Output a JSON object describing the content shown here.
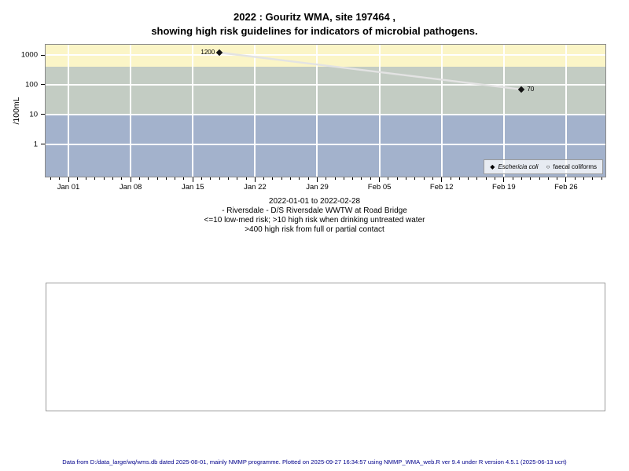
{
  "chart_data": {
    "type": "scatter",
    "title_lines": [
      "2022 : Gouritz WMA, site 197464 ,",
      "showing high risk guidelines for indicators of microbial pathogens."
    ],
    "ylabel": "/100mL",
    "xlabel": "",
    "y_scale": "log10",
    "ylim": [
      0.083,
      2200
    ],
    "y_ticks": [
      {
        "value": 1000,
        "label": "1000"
      },
      {
        "value": 100,
        "label": "100"
      },
      {
        "value": 10,
        "label": "10"
      },
      {
        "value": 1,
        "label": "1"
      }
    ],
    "x_epoch": "2022-01-01",
    "xlim_days": [
      -2.57,
      60.43
    ],
    "x_ticks": [
      {
        "date": "2022-01-01",
        "label": "Jan 01"
      },
      {
        "date": "2022-01-08",
        "label": "Jan 08"
      },
      {
        "date": "2022-01-15",
        "label": "Jan 15"
      },
      {
        "date": "2022-01-22",
        "label": "Jan 22"
      },
      {
        "date": "2022-01-29",
        "label": "Jan 29"
      },
      {
        "date": "2022-02-05",
        "label": "Feb 05"
      },
      {
        "date": "2022-02-12",
        "label": "Feb 12"
      },
      {
        "date": "2022-02-19",
        "label": "Feb 19"
      },
      {
        "date": "2022-02-26",
        "label": "Feb 26"
      }
    ],
    "x_minor_ticks": {
      "start_day": -2,
      "end_day": 60,
      "step": 1
    },
    "series": [
      {
        "name": "Eschericia coli",
        "symbol": "filled-diamond",
        "points": [
          {
            "date": "2022-01-18",
            "value": 1200,
            "label": "1200",
            "label_side": "left"
          },
          {
            "date": "2022-02-21",
            "value": 70,
            "label": "70",
            "label_side": "right"
          }
        ]
      },
      {
        "name": "faecal coliforms",
        "symbol": "open-circle",
        "points": []
      }
    ],
    "risk_bands": [
      {
        "name": "high risk from full or partial contact (>400)",
        "from": 400,
        "to": 2200,
        "color": "#FBF5C7"
      },
      {
        "name": "high risk when drinking untreated water (10-400)",
        "from": 10,
        "to": 400,
        "color": "#C3CCC3"
      },
      {
        "name": "low-med risk (<=10)",
        "from": 0.083,
        "to": 10,
        "color": "#A3B2CC"
      }
    ],
    "gridlines_y": [
      1000,
      100,
      10,
      1
    ],
    "grid_color": "#FFFFFF",
    "line_color": "#E3E3E3",
    "point_color": "#141414",
    "legend": {
      "position": "bottom-right",
      "entries": [
        {
          "label": "Eschericia coli",
          "symbol": "filled-diamond",
          "italic": true
        },
        {
          "label": "faecal coliforms",
          "symbol": "open-circle",
          "italic": false
        }
      ]
    },
    "annotations": [
      "2022-01-01 to 2022-02-28",
      "- Riversdale - D/S Riversdale WWTW at Road Bridge",
      "<=10 low-med risk; >10 high risk when drinking untreated water",
      ">400 high risk from full or partial contact"
    ]
  },
  "footer": {
    "text": "Data from D:/data_large/wq/wms.db dated 2025-08-01, mainly NMMP programme. Plotted on 2025-09-27 16:34:57 using NMMP_WMA_web.R ver 9.4 under R version 4.5.1 (2025-06-13 ucrt)"
  }
}
